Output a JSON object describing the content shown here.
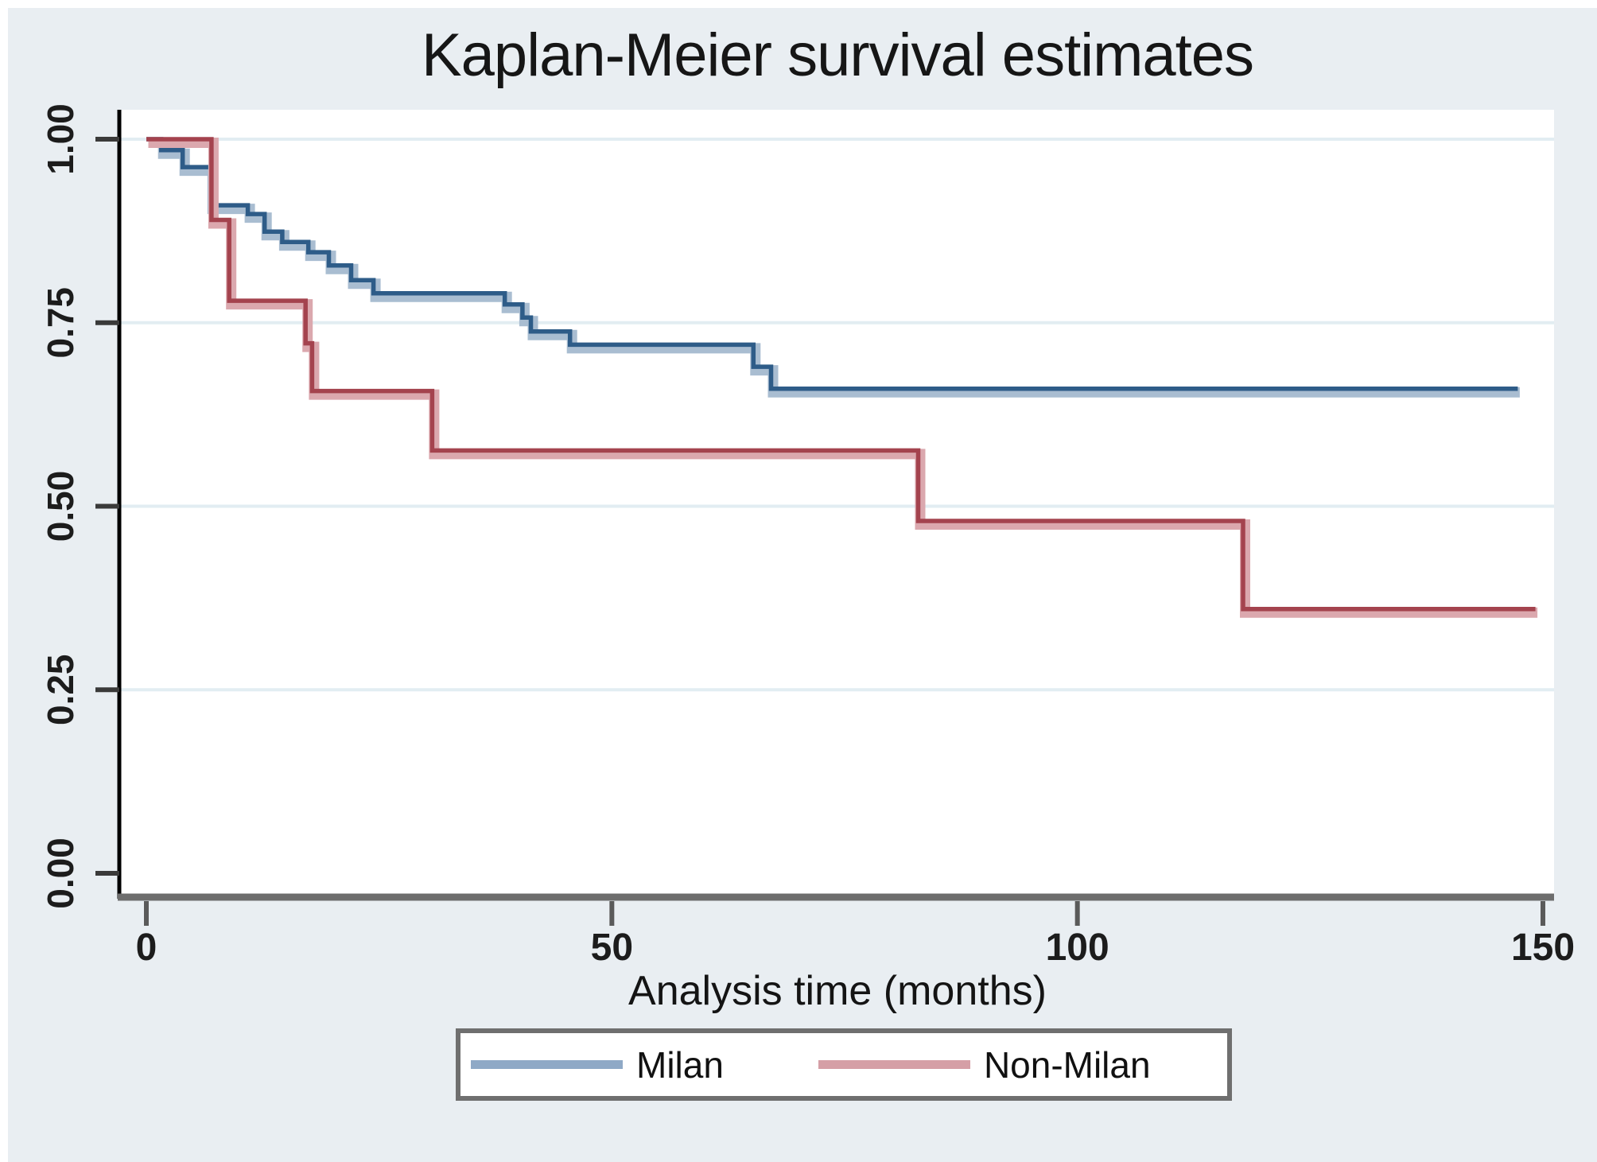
{
  "figure": {
    "title": "Kaplan-Meier survival estimates",
    "background_color": "#e9eef2",
    "plot_background": "#ffffff",
    "gridline_color": "#e2edf2",
    "y_axis_color": "#000000",
    "x_axis_color": "#6d6d6d",
    "tick_color": "#5a5a5a",
    "text_color": "#1c1c1c"
  },
  "x_axis": {
    "label": "Analysis time (months)",
    "ticks": [
      "0",
      "50",
      "100",
      "150"
    ],
    "tick_values": [
      0,
      50,
      100,
      150
    ],
    "range": [
      0,
      150
    ]
  },
  "y_axis": {
    "ticks": [
      "0.00",
      "0.25",
      "0.50",
      "0.75",
      "1.00"
    ],
    "tick_values": [
      0,
      0.25,
      0.5,
      0.75,
      1
    ],
    "range": [
      0,
      1
    ]
  },
  "legend": {
    "entries": [
      {
        "label": "Milan",
        "color": "#8fa9c6"
      },
      {
        "label": "Non-Milan",
        "color": "#d59fa6"
      }
    ]
  },
  "chart_data": {
    "type": "line",
    "subtype": "kaplan-meier-step",
    "title": "Kaplan-Meier survival estimates",
    "xlabel": "Analysis time (months)",
    "ylabel": "",
    "xlim": [
      0,
      150
    ],
    "ylim": [
      0,
      1
    ],
    "grid": "horizontal",
    "legend_position": "bottom-center",
    "series": [
      {
        "name": "Milan",
        "color": "#2e5c88",
        "halo_color": "#a9bdd1",
        "end_t": 147.3,
        "steps": [
          [
            0,
            1.0
          ],
          [
            1.6,
            0.985
          ],
          [
            3.9,
            0.962
          ],
          [
            6.9,
            0.91
          ],
          [
            10.9,
            0.898
          ],
          [
            12.7,
            0.874
          ],
          [
            14.6,
            0.86
          ],
          [
            17.4,
            0.846
          ],
          [
            19.6,
            0.828
          ],
          [
            22.0,
            0.808
          ],
          [
            24.4,
            0.79
          ],
          [
            38.5,
            0.775
          ],
          [
            40.4,
            0.757
          ],
          [
            41.3,
            0.738
          ],
          [
            45.5,
            0.72
          ],
          [
            65.2,
            0.69
          ],
          [
            67.1,
            0.66
          ]
        ]
      },
      {
        "name": "Non-Milan",
        "color": "#a4434e",
        "halo_color": "#dba8ae",
        "end_t": 149.2,
        "steps": [
          [
            0,
            1.0
          ],
          [
            7.0,
            0.89
          ],
          [
            8.9,
            0.78
          ],
          [
            17.1,
            0.722
          ],
          [
            17.8,
            0.657
          ],
          [
            30.7,
            0.576
          ],
          [
            82.9,
            0.48
          ],
          [
            117.8,
            0.36
          ]
        ]
      }
    ]
  }
}
